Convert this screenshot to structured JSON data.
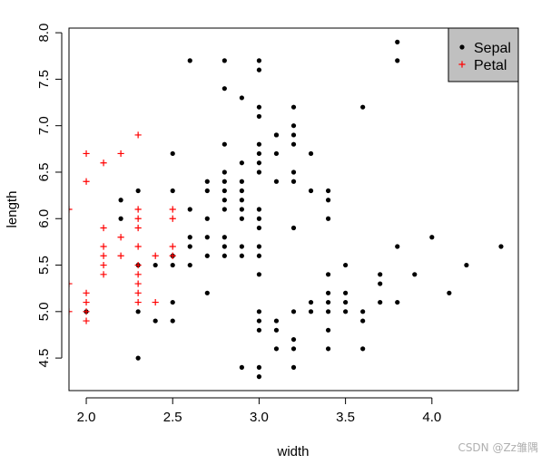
{
  "chart_data": {
    "type": "scatter",
    "title": "",
    "xlabel": "width",
    "ylabel": "length",
    "xlim": [
      1.9,
      4.5
    ],
    "ylim": [
      4.15,
      8.05
    ],
    "x_ticks": [
      "2.0",
      "2.5",
      "3.0",
      "3.5",
      "4.0"
    ],
    "y_ticks": [
      "4.5",
      "5.0",
      "5.5",
      "6.0",
      "6.5",
      "7.0",
      "7.5",
      "8.0"
    ],
    "grid": false,
    "legend": {
      "placement": "top-right",
      "background": "#c0c0c0",
      "entries": [
        "Sepal",
        "Petal"
      ]
    },
    "series": [
      {
        "name": "Sepal",
        "marker": "dot",
        "color": "#000000",
        "points": [
          [
            3.8,
            7.9
          ],
          [
            3.8,
            7.7
          ],
          [
            2.6,
            7.7
          ],
          [
            2.8,
            7.7
          ],
          [
            3.0,
            7.7
          ],
          [
            3.0,
            7.6
          ],
          [
            2.8,
            7.4
          ],
          [
            2.9,
            7.3
          ],
          [
            3.6,
            7.2
          ],
          [
            3.0,
            7.2
          ],
          [
            3.2,
            7.2
          ],
          [
            3.0,
            7.1
          ],
          [
            3.2,
            7.0
          ],
          [
            3.1,
            6.9
          ],
          [
            3.2,
            6.9
          ],
          [
            3.1,
            6.9
          ],
          [
            2.8,
            6.8
          ],
          [
            3.0,
            6.8
          ],
          [
            3.2,
            6.8
          ],
          [
            2.5,
            6.7
          ],
          [
            3.1,
            6.7
          ],
          [
            3.0,
            6.7
          ],
          [
            3.3,
            6.7
          ],
          [
            3.0,
            6.6
          ],
          [
            2.9,
            6.6
          ],
          [
            2.8,
            6.5
          ],
          [
            3.0,
            6.5
          ],
          [
            3.2,
            6.5
          ],
          [
            2.8,
            6.4
          ],
          [
            2.7,
            6.4
          ],
          [
            2.9,
            6.4
          ],
          [
            3.1,
            6.4
          ],
          [
            3.2,
            6.4
          ],
          [
            2.3,
            6.3
          ],
          [
            2.5,
            6.3
          ],
          [
            2.7,
            6.3
          ],
          [
            2.8,
            6.3
          ],
          [
            2.9,
            6.3
          ],
          [
            3.3,
            6.3
          ],
          [
            3.4,
            6.3
          ],
          [
            2.2,
            6.2
          ],
          [
            2.8,
            6.2
          ],
          [
            2.9,
            6.2
          ],
          [
            3.4,
            6.2
          ],
          [
            2.6,
            6.1
          ],
          [
            2.8,
            6.1
          ],
          [
            2.9,
            6.1
          ],
          [
            3.0,
            6.1
          ],
          [
            2.2,
            6.0
          ],
          [
            2.7,
            6.0
          ],
          [
            2.9,
            6.0
          ],
          [
            3.0,
            6.0
          ],
          [
            3.4,
            6.0
          ],
          [
            3.0,
            5.9
          ],
          [
            3.2,
            5.9
          ],
          [
            4.0,
            5.8
          ],
          [
            2.6,
            5.8
          ],
          [
            2.7,
            5.8
          ],
          [
            2.8,
            5.8
          ],
          [
            3.8,
            5.7
          ],
          [
            2.6,
            5.7
          ],
          [
            2.8,
            5.7
          ],
          [
            2.9,
            5.7
          ],
          [
            3.0,
            5.7
          ],
          [
            4.4,
            5.7
          ],
          [
            2.5,
            5.6
          ],
          [
            2.7,
            5.6
          ],
          [
            2.8,
            5.6
          ],
          [
            2.9,
            5.6
          ],
          [
            3.0,
            5.6
          ],
          [
            2.3,
            5.5
          ],
          [
            2.4,
            5.5
          ],
          [
            2.5,
            5.5
          ],
          [
            2.6,
            5.5
          ],
          [
            3.5,
            5.5
          ],
          [
            4.2,
            5.5
          ],
          [
            3.4,
            5.4
          ],
          [
            3.7,
            5.4
          ],
          [
            3.9,
            5.4
          ],
          [
            3.0,
            5.4
          ],
          [
            3.7,
            5.3
          ],
          [
            3.4,
            5.2
          ],
          [
            3.5,
            5.2
          ],
          [
            2.7,
            5.2
          ],
          [
            4.1,
            5.2
          ],
          [
            2.5,
            5.1
          ],
          [
            3.3,
            5.1
          ],
          [
            3.4,
            5.1
          ],
          [
            3.5,
            5.1
          ],
          [
            3.7,
            5.1
          ],
          [
            3.8,
            5.1
          ],
          [
            2.3,
            5.0
          ],
          [
            3.0,
            5.0
          ],
          [
            3.2,
            5.0
          ],
          [
            3.3,
            5.0
          ],
          [
            3.4,
            5.0
          ],
          [
            3.5,
            5.0
          ],
          [
            3.6,
            5.0
          ],
          [
            2.0,
            5.0
          ],
          [
            2.4,
            4.9
          ],
          [
            2.5,
            4.9
          ],
          [
            3.0,
            4.9
          ],
          [
            3.1,
            4.9
          ],
          [
            3.6,
            4.9
          ],
          [
            3.0,
            4.8
          ],
          [
            3.1,
            4.8
          ],
          [
            3.4,
            4.8
          ],
          [
            3.2,
            4.7
          ],
          [
            3.2,
            4.6
          ],
          [
            3.1,
            4.6
          ],
          [
            3.4,
            4.6
          ],
          [
            3.6,
            4.6
          ],
          [
            2.3,
            4.5
          ],
          [
            2.9,
            4.4
          ],
          [
            3.0,
            4.4
          ],
          [
            3.2,
            4.4
          ],
          [
            3.0,
            4.3
          ]
        ]
      },
      {
        "name": "Petal",
        "marker": "plus",
        "color": "#ff0000",
        "points": [
          [
            2.3,
            6.9
          ],
          [
            2.0,
            6.7
          ],
          [
            2.2,
            6.7
          ],
          [
            2.1,
            6.6
          ],
          [
            2.0,
            6.4
          ],
          [
            1.9,
            6.1
          ],
          [
            2.3,
            6.1
          ],
          [
            2.5,
            6.1
          ],
          [
            2.3,
            6.0
          ],
          [
            2.5,
            6.0
          ],
          [
            2.1,
            5.9
          ],
          [
            2.3,
            5.9
          ],
          [
            2.2,
            5.8
          ],
          [
            2.1,
            5.7
          ],
          [
            2.3,
            5.7
          ],
          [
            2.5,
            5.7
          ],
          [
            2.1,
            5.6
          ],
          [
            2.2,
            5.6
          ],
          [
            2.4,
            5.6
          ],
          [
            2.5,
            5.6
          ],
          [
            2.1,
            5.5
          ],
          [
            2.3,
            5.5
          ],
          [
            2.1,
            5.4
          ],
          [
            2.3,
            5.4
          ],
          [
            2.3,
            5.3
          ],
          [
            1.9,
            5.3
          ],
          [
            2.0,
            5.2
          ],
          [
            2.3,
            5.2
          ],
          [
            2.0,
            5.1
          ],
          [
            2.3,
            5.1
          ],
          [
            2.4,
            5.1
          ],
          [
            2.0,
            5.0
          ],
          [
            1.9,
            5.0
          ],
          [
            2.0,
            4.9
          ]
        ]
      }
    ]
  },
  "watermark": "CSDN @Zz雏隅"
}
